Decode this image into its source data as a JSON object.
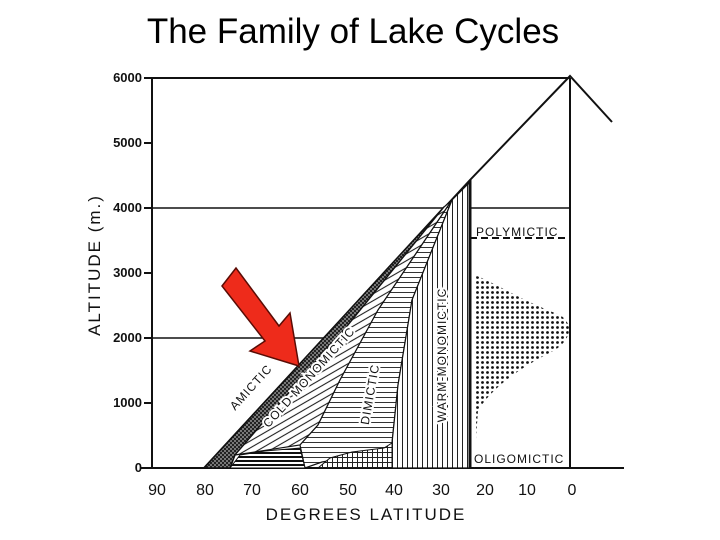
{
  "title": "The Family of Lake Cycles",
  "y_axis": {
    "label": "ALTITUDE (m.)",
    "ticks": [
      "0",
      "1000",
      "2000",
      "3000",
      "4000",
      "5000",
      "6000"
    ]
  },
  "x_axis": {
    "label": "DEGREES LATITUDE",
    "ticks": [
      "90",
      "80",
      "70",
      "60",
      "50",
      "40",
      "30",
      "20",
      "10",
      "0"
    ]
  },
  "zones": {
    "amictic": "AMICTIC",
    "cold_monomictic": "COLD MONOMICTIC",
    "dimictic": "DIMICTIC",
    "warm_monomictic": "WARM MONOMICTIC",
    "polymictic": "POLYMICTIC",
    "oligomictic": "OLIGOMICTIC"
  },
  "colors": {
    "arrow": "#ee2b1b",
    "arrow_outline": "#5a0c05",
    "ink": "#111111"
  }
}
